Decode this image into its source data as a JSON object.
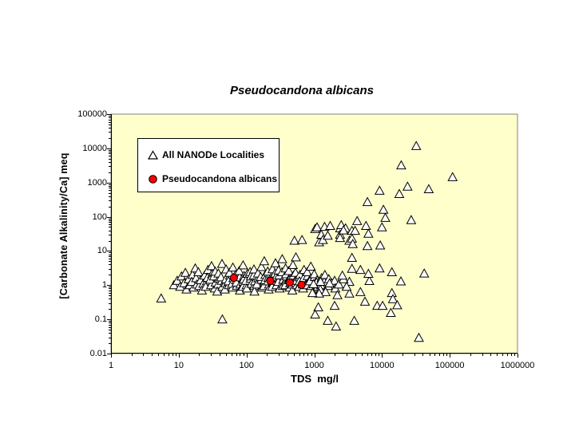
{
  "title": "Pseudocandona albicans",
  "x_axis": {
    "label": "TDS  mg/l",
    "ticks": [
      "1",
      "10",
      "100",
      "1000",
      "10000",
      "100000",
      "1000000"
    ],
    "min": 1,
    "max": 1000000,
    "scale": "log"
  },
  "y_axis": {
    "label": "[Carbonate Alkalinity/Ca] meq",
    "ticks": [
      "100000",
      "10000",
      "1000",
      "100",
      "10",
      "1",
      "0.1",
      "0.01"
    ],
    "min": 0.01,
    "max": 100000,
    "scale": "log"
  },
  "legend": {
    "items": [
      {
        "label": "All NANODe Localities",
        "marker": "triangle-open"
      },
      {
        "label": "Pseudocandona albicans",
        "marker": "circle-red"
      }
    ]
  },
  "colors": {
    "page_bg": "#FFFFFF",
    "plot_bg": "#FFFFCC",
    "frame": "#808080",
    "axis": "#000000",
    "triangle_fill": "#FFFFFF",
    "triangle_edge": "#000000",
    "circle_fill": "#FF0000",
    "circle_edge": "#000000"
  },
  "chart_data": {
    "type": "scatter",
    "x_scale": "log",
    "y_scale": "log",
    "xlim": [
      1,
      1000000
    ],
    "ylim": [
      0.01,
      100000
    ],
    "title": "Pseudocandona albicans",
    "xlabel": "TDS  mg/l",
    "ylabel": "[Carbonate Alkalinity/Ca] meq",
    "legend_position": "upper-left-inside",
    "grid": false,
    "series": [
      {
        "name": "All NANODe Localities",
        "marker": "triangle-open",
        "points": [
          [
            5.5,
            0.41
          ],
          [
            44,
            0.1
          ],
          [
            8.5,
            1.0
          ],
          [
            9.5,
            1.35
          ],
          [
            10.5,
            0.9
          ],
          [
            11,
            1.8
          ],
          [
            12,
            1.15
          ],
          [
            12.5,
            2.3
          ],
          [
            13,
            0.75
          ],
          [
            14,
            1.5
          ],
          [
            14.5,
            1.0
          ],
          [
            16,
            2.0
          ],
          [
            16.5,
            0.85
          ],
          [
            15.5,
            1.25
          ],
          [
            18,
            1.6
          ],
          [
            18.5,
            1.05
          ],
          [
            17.5,
            3.1
          ],
          [
            20,
            0.95
          ],
          [
            21,
            1.4
          ],
          [
            19.5,
            2.4
          ],
          [
            23,
            1.1
          ],
          [
            24,
            1.9
          ],
          [
            22,
            0.7
          ],
          [
            26,
            1.3
          ],
          [
            27,
            2.8
          ],
          [
            25,
            0.9
          ],
          [
            26.5,
            1.65
          ],
          [
            30,
            1.0
          ],
          [
            31,
            2.1
          ],
          [
            29,
            1.45
          ],
          [
            30.5,
            3.6
          ],
          [
            34,
            0.8
          ],
          [
            35,
            1.2
          ],
          [
            33,
            1.8
          ],
          [
            34.5,
            2.5
          ],
          [
            38,
            1.05
          ],
          [
            39,
            1.55
          ],
          [
            37,
            0.65
          ],
          [
            38.5,
            2.2
          ],
          [
            43,
            1.35
          ],
          [
            44,
            0.9
          ],
          [
            42,
            1.7
          ],
          [
            43.5,
            4.2
          ],
          [
            49,
            1.15
          ],
          [
            50,
            2.9
          ],
          [
            48,
            0.75
          ],
          [
            49.5,
            1.5
          ],
          [
            55,
            1.0
          ],
          [
            57,
            1.9
          ],
          [
            54,
            1.3
          ],
          [
            56,
            2.3
          ],
          [
            62,
            0.85
          ],
          [
            64,
            1.6
          ],
          [
            61,
            1.1
          ],
          [
            63,
            3.3
          ],
          [
            70,
            1.4
          ],
          [
            72,
            0.95
          ],
          [
            69,
            2.0
          ],
          [
            71,
            1.2
          ],
          [
            79,
            1.7
          ],
          [
            81,
            1.05
          ],
          [
            78,
            2.6
          ],
          [
            80,
            0.7
          ],
          [
            90,
            1.25
          ],
          [
            92,
            1.85
          ],
          [
            88,
            0.9
          ],
          [
            91,
            1.5
          ],
          [
            89,
            3.8
          ],
          [
            100,
            1.0
          ],
          [
            103,
            2.15
          ],
          [
            98,
            1.35
          ],
          [
            101,
            0.8
          ],
          [
            115,
            1.55
          ],
          [
            118,
            1.1
          ],
          [
            113,
            2.45
          ],
          [
            116,
            1.8
          ],
          [
            130,
            0.95
          ],
          [
            133,
            1.3
          ],
          [
            128,
            1.95
          ],
          [
            131,
            0.65
          ],
          [
            129,
            2.9
          ],
          [
            145,
            1.15
          ],
          [
            149,
            1.6
          ],
          [
            142,
            1.05
          ],
          [
            147,
            2.2
          ],
          [
            165,
            1.45
          ],
          [
            169,
            0.85
          ],
          [
            162,
            1.75
          ],
          [
            166,
            3.4
          ],
          [
            185,
            1.2
          ],
          [
            190,
            2.0
          ],
          [
            181,
            0.95
          ],
          [
            187,
            1.4
          ],
          [
            183,
            5.0
          ],
          [
            210,
            1.65
          ],
          [
            215,
            1.05
          ],
          [
            206,
            2.5
          ],
          [
            212,
            0.75
          ],
          [
            208,
            1.3
          ],
          [
            240,
            1.9
          ],
          [
            246,
            1.15
          ],
          [
            235,
            1.5
          ],
          [
            242,
            2.95
          ],
          [
            238,
            0.9
          ],
          [
            270,
            1.35
          ],
          [
            277,
            1.0
          ],
          [
            264,
            2.2
          ],
          [
            272,
            1.7
          ],
          [
            268,
            4.4
          ],
          [
            300,
            1.55
          ],
          [
            308,
            0.8
          ],
          [
            294,
            1.25
          ],
          [
            303,
            1.95
          ],
          [
            297,
            2.7
          ],
          [
            340,
            1.1
          ],
          [
            348,
            1.45
          ],
          [
            333,
            2.4
          ],
          [
            343,
            0.95
          ],
          [
            337,
            5.8
          ],
          [
            380,
            1.3
          ],
          [
            389,
            1.8
          ],
          [
            372,
            1.0
          ],
          [
            384,
            2.1
          ],
          [
            377,
            3.1
          ],
          [
            430,
            1.6
          ],
          [
            440,
            1.15
          ],
          [
            421,
            2.6
          ],
          [
            434,
            0.85
          ],
          [
            426,
            1.4
          ],
          [
            480,
            1.2
          ],
          [
            492,
            1.9
          ],
          [
            470,
            1.05
          ],
          [
            485,
            3.9
          ],
          [
            475,
            0.7
          ],
          [
            540,
            1.5
          ],
          [
            553,
            1.0
          ],
          [
            529,
            2.3
          ],
          [
            545,
            1.35
          ],
          [
            535,
            6.5
          ],
          [
            610,
            1.7
          ],
          [
            625,
            1.1
          ],
          [
            598,
            0.9
          ],
          [
            616,
            2.0
          ],
          [
            604,
            1.3
          ],
          [
            690,
            1.45
          ],
          [
            707,
            2.8
          ],
          [
            676,
            1.05
          ],
          [
            697,
            1.6
          ],
          [
            683,
            0.8
          ],
          [
            780,
            1.2
          ],
          [
            799,
            1.85
          ],
          [
            764,
            1.0
          ],
          [
            788,
            2.4
          ],
          [
            880,
            1.55
          ],
          [
            901,
            0.95
          ],
          [
            862,
            1.3
          ],
          [
            889,
            3.5
          ],
          [
            990,
            1.1
          ],
          [
            1014,
            1.75
          ],
          [
            970,
            0.6
          ],
          [
            1000,
            2.1
          ],
          [
            1100,
            1.4
          ],
          [
            1127,
            0.9
          ],
          [
            1078,
            1.2
          ],
          [
            1250,
            1.0
          ],
          [
            1280,
            1.6
          ],
          [
            1225,
            0.75
          ],
          [
            1400,
            1.25
          ],
          [
            1434,
            2.0
          ],
          [
            1600,
            0.95
          ],
          [
            1639,
            1.5
          ],
          [
            1800,
            1.15
          ],
          [
            2000,
            1.35
          ],
          [
            2049,
            0.8
          ],
          [
            2300,
            1.05
          ],
          [
            510,
            20
          ],
          [
            660,
            21
          ],
          [
            1030,
            44
          ],
          [
            1100,
            49
          ],
          [
            1180,
            18
          ],
          [
            1270,
            30
          ],
          [
            1340,
            21
          ],
          [
            1420,
            51
          ],
          [
            1580,
            28
          ],
          [
            1720,
            54
          ],
          [
            2400,
            46
          ],
          [
            2400,
            30
          ],
          [
            2500,
            57
          ],
          [
            2900,
            46
          ],
          [
            3300,
            20
          ],
          [
            2400,
            24
          ],
          [
            2700,
            40
          ],
          [
            3600,
            39
          ],
          [
            3600,
            23
          ],
          [
            3700,
            16
          ],
          [
            4000,
            39
          ],
          [
            4300,
            75
          ],
          [
            5800,
            54
          ],
          [
            6100,
            270
          ],
          [
            6100,
            14
          ],
          [
            6300,
            32
          ],
          [
            9200,
            580
          ],
          [
            9400,
            14.5
          ],
          [
            10000,
            49
          ],
          [
            10500,
            160
          ],
          [
            11200,
            93
          ],
          [
            18000,
            465
          ],
          [
            19200,
            3200
          ],
          [
            23800,
            760
          ],
          [
            27000,
            80
          ],
          [
            32000,
            11700
          ],
          [
            49000,
            640
          ],
          [
            110000,
            1440
          ],
          [
            14000,
            2.4
          ],
          [
            42000,
            2.2
          ],
          [
            6500,
            1.33
          ],
          [
            19000,
            1.29
          ],
          [
            8500,
            0.25
          ],
          [
            10200,
            0.25
          ],
          [
            13500,
            0.155
          ],
          [
            14000,
            0.59
          ],
          [
            14500,
            0.39
          ],
          [
            16800,
            0.26
          ],
          [
            35000,
            0.029
          ],
          [
            3300,
            0.57
          ],
          [
            4800,
            0.63
          ],
          [
            5600,
            0.33
          ],
          [
            3900,
            0.091
          ],
          [
            2100,
            0.062
          ],
          [
            1580,
            0.091
          ],
          [
            1150,
            0.225
          ],
          [
            1030,
            0.139
          ],
          [
            2000,
            0.25
          ],
          [
            2200,
            0.51
          ],
          [
            1680,
            1.13
          ],
          [
            1240,
            1.26
          ],
          [
            975,
            1.07
          ],
          [
            1470,
            0.63
          ],
          [
            1180,
            0.57
          ],
          [
            940,
            0.59
          ],
          [
            3300,
            1.26
          ],
          [
            3600,
            3.0
          ],
          [
            3600,
            6.3
          ],
          [
            4800,
            2.8
          ],
          [
            6300,
            2.15
          ],
          [
            9200,
            3.1
          ],
          [
            2700,
            1.5
          ],
          [
            3000,
            0.9
          ],
          [
            2600,
            1.9
          ]
        ]
      },
      {
        "name": "Pseudocandona albicans",
        "marker": "circle-red",
        "points": [
          [
            65,
            1.65
          ],
          [
            225,
            1.33
          ],
          [
            435,
            1.19
          ],
          [
            650,
            1.02
          ]
        ]
      }
    ]
  }
}
